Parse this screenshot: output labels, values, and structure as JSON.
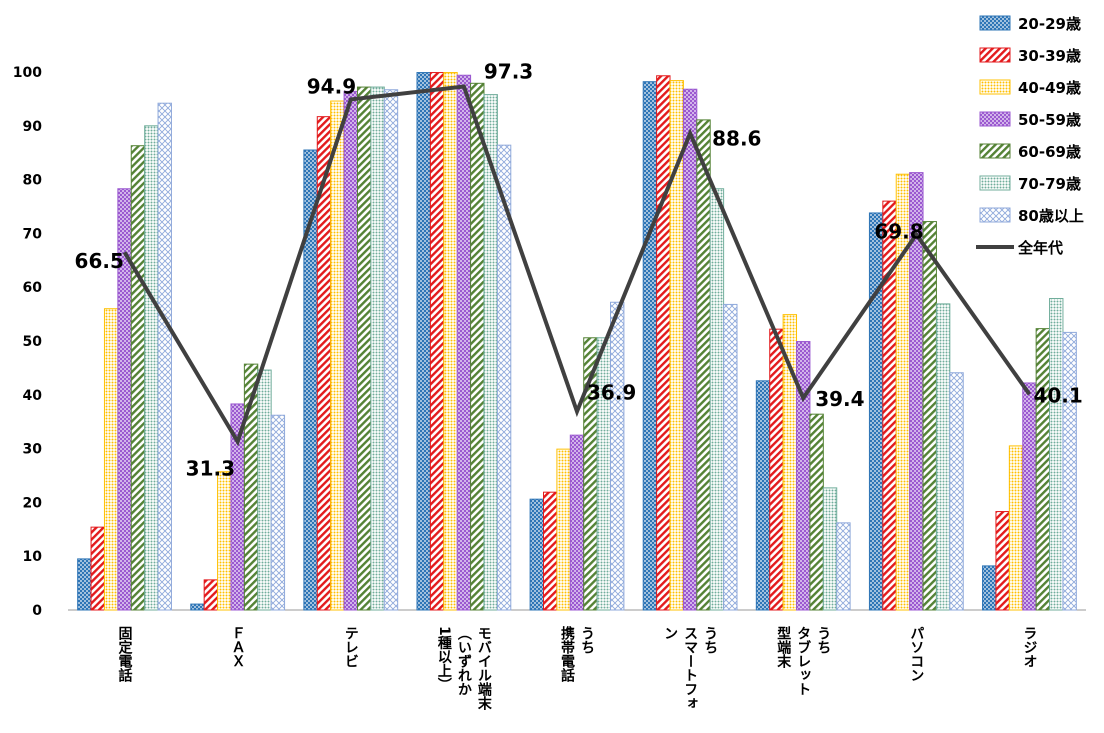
{
  "chart_data": {
    "type": "bar",
    "title": "",
    "xlabel": "",
    "ylabel": "",
    "ylim": [
      0,
      100
    ],
    "yticks": [
      0,
      10,
      20,
      30,
      40,
      50,
      60,
      70,
      80,
      90,
      100
    ],
    "grid": false,
    "legend_position": "top-right",
    "categories": [
      {
        "label": "固定電話",
        "columns": [
          "固定電話"
        ]
      },
      {
        "label": "ＦＡＸ",
        "columns": [
          "ＦＡＸ"
        ]
      },
      {
        "label": "テレビ",
        "columns": [
          "テレビ"
        ]
      },
      {
        "label": "モバイル端末（いずれか1種以上）",
        "columns": [
          "モバイル端末",
          "（いずれか",
          "1種以上）"
        ]
      },
      {
        "label": "うち携帯電話",
        "columns": [
          "うち",
          "携帯電話"
        ]
      },
      {
        "label": "うちスマートフォン",
        "columns": [
          "うち",
          "スマートフォ",
          "ン"
        ]
      },
      {
        "label": "うちタブレット型端末",
        "columns": [
          "うち",
          "タブレット",
          "型端末"
        ]
      },
      {
        "label": "パソコン",
        "columns": [
          "パソコン"
        ]
      },
      {
        "label": "ラジオ",
        "columns": [
          "ラジオ"
        ]
      }
    ],
    "series": [
      {
        "name": "20-29歳",
        "color": "#2E75B6",
        "pattern": "checker",
        "values": [
          9.5,
          1.1,
          85.5,
          99.9,
          20.6,
          98.2,
          42.6,
          73.8,
          8.2
        ]
      },
      {
        "name": "30-39歳",
        "color": "#E31A1C",
        "pattern": "diagonal",
        "values": [
          15.4,
          5.6,
          91.7,
          99.9,
          21.9,
          99.3,
          52.2,
          76.0,
          18.3
        ]
      },
      {
        "name": "40-49歳",
        "color": "#FFC000",
        "pattern": "dots",
        "values": [
          56.0,
          25.7,
          94.6,
          99.9,
          29.9,
          98.4,
          54.9,
          81.0,
          30.5
        ]
      },
      {
        "name": "50-59歳",
        "color": "#9B59D0",
        "pattern": "checker",
        "values": [
          78.3,
          38.3,
          96.4,
          99.4,
          32.5,
          96.8,
          49.9,
          81.3,
          42.2
        ]
      },
      {
        "name": "60-69歳",
        "color": "#548235",
        "pattern": "diagonal",
        "values": [
          86.3,
          45.7,
          97.2,
          97.9,
          50.6,
          91.1,
          36.4,
          72.2,
          52.3
        ]
      },
      {
        "name": "70-79歳",
        "color": "#70AD9B",
        "pattern": "dots",
        "values": [
          90.0,
          44.6,
          97.2,
          95.8,
          50.6,
          78.3,
          22.7,
          56.9,
          57.9
        ]
      },
      {
        "name": "80歳以上",
        "color": "#8FA9DB",
        "pattern": "cross",
        "values": [
          94.2,
          36.2,
          96.7,
          86.4,
          57.2,
          56.8,
          16.2,
          44.1,
          51.6
        ]
      },
      {
        "name": "全年代",
        "color": "#404040",
        "type": "line",
        "values": [
          66.5,
          31.3,
          94.9,
          97.3,
          36.9,
          88.6,
          39.4,
          69.8,
          40.1
        ]
      }
    ],
    "data_labels": [
      "66.5",
      "31.3",
      "94.9",
      "97.3",
      "36.9",
      "88.6",
      "39.4",
      "69.8",
      "40.1"
    ]
  }
}
